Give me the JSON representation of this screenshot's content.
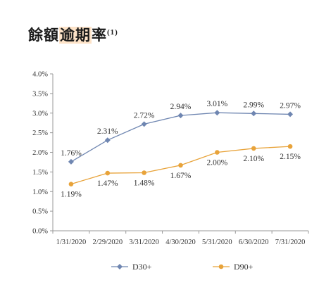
{
  "title": {
    "pre": "餘額",
    "highlight": "逾期",
    "post": "率",
    "note": "(1)"
  },
  "colors": {
    "d30": "#6f86b1",
    "d90": "#e8a33a",
    "axis": "#999999"
  },
  "chart_data": {
    "type": "line",
    "categories": [
      "1/31/2020",
      "2/29/2020",
      "3/31/2020",
      "4/30/2020",
      "5/31/2020",
      "6/30/2020",
      "7/31/2020"
    ],
    "series": [
      {
        "name": "D30+",
        "values": [
          1.76,
          2.31,
          2.72,
          2.94,
          3.01,
          2.99,
          2.97
        ],
        "labels": [
          "1.76%",
          "2.31%",
          "2.72%",
          "2.94%",
          "3.01%",
          "2.99%",
          "2.97%"
        ],
        "color": "#6f86b1"
      },
      {
        "name": "D90+",
        "values": [
          1.19,
          1.47,
          1.48,
          1.67,
          2.0,
          2.1,
          2.15
        ],
        "labels": [
          "1.19%",
          "1.47%",
          "1.48%",
          "1.67%",
          "2.00%",
          "2.10%",
          "2.15%"
        ],
        "color": "#e8a33a"
      }
    ],
    "yticks": [
      "0.0%",
      "0.5%",
      "1.0%",
      "1.5%",
      "2.0%",
      "2.5%",
      "3.0%",
      "3.5%",
      "4.0%"
    ],
    "ylim": [
      0,
      4
    ],
    "grid": false,
    "legend_position": "bottom"
  }
}
